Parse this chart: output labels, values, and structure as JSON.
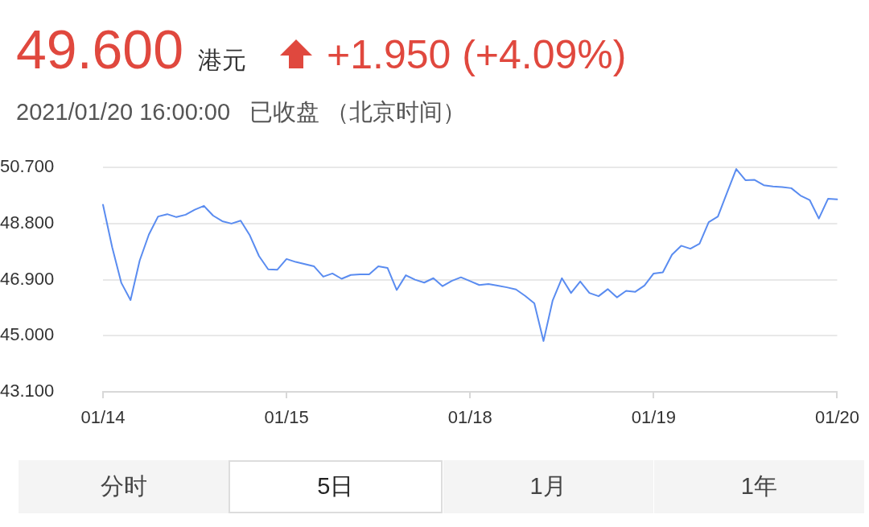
{
  "chart_data": {
    "type": "line",
    "title": "49.600",
    "subtitle": "2021/01/20 16:00:00   已收盘 （北京时间）",
    "annotations": [
      "港元",
      "+1.950 (+4.09%)",
      "分时",
      "5日",
      "1月",
      "1年"
    ],
    "categories": [
      "01/14",
      null,
      null,
      null,
      null,
      null,
      null,
      null,
      null,
      null,
      null,
      null,
      null,
      null,
      null,
      null,
      null,
      null,
      null,
      null,
      "01/15",
      null,
      null,
      null,
      null,
      null,
      null,
      null,
      null,
      null,
      null,
      null,
      null,
      null,
      null,
      null,
      null,
      null,
      null,
      null,
      "01/18",
      null,
      null,
      null,
      null,
      null,
      null,
      null,
      null,
      null,
      null,
      null,
      null,
      null,
      null,
      null,
      null,
      null,
      null,
      null,
      "01/19",
      null,
      null,
      null,
      null,
      null,
      null,
      null,
      null,
      null,
      null,
      null,
      null,
      null,
      null,
      null,
      null,
      null,
      null,
      null,
      "01/20"
    ],
    "series": [
      {
        "color": "#5a8cf0",
        "values": [
          49.44,
          48.0,
          46.79,
          46.21,
          47.55,
          48.43,
          49.04,
          49.12,
          49.02,
          49.1,
          49.27,
          49.4,
          49.07,
          48.88,
          48.8,
          48.9,
          48.4,
          47.7,
          47.25,
          47.24,
          47.6,
          47.5,
          47.43,
          47.35,
          47.0,
          47.11,
          46.93,
          47.06,
          47.08,
          47.08,
          47.35,
          47.3,
          46.55,
          47.05,
          46.9,
          46.8,
          46.95,
          46.68,
          46.86,
          46.98,
          46.85,
          46.72,
          46.75,
          46.7,
          46.64,
          46.57,
          46.35,
          46.1,
          44.82,
          46.2,
          46.95,
          46.45,
          46.84,
          46.45,
          46.34,
          46.58,
          46.3,
          46.52,
          46.49,
          46.7,
          47.11,
          47.15,
          47.75,
          48.05,
          47.95,
          48.12,
          48.85,
          49.04,
          49.85,
          50.65,
          50.27,
          50.28,
          50.1,
          50.06,
          50.04,
          50.0,
          49.75,
          49.6,
          48.97,
          49.64,
          49.62
        ]
      }
    ],
    "ylim": [
      43.1,
      50.7
    ],
    "yticks": [
      {
        "value": 43.1,
        "label": "43.100"
      },
      {
        "value": 45,
        "label": "45.000"
      },
      {
        "value": 46.9,
        "label": "46.900"
      },
      {
        "value": 48.8,
        "label": "48.800"
      },
      {
        "value": 50.7,
        "label": "50.700"
      }
    ],
    "grid": "y",
    "legend": false,
    "marker": "none",
    "line_style": "solid"
  }
}
